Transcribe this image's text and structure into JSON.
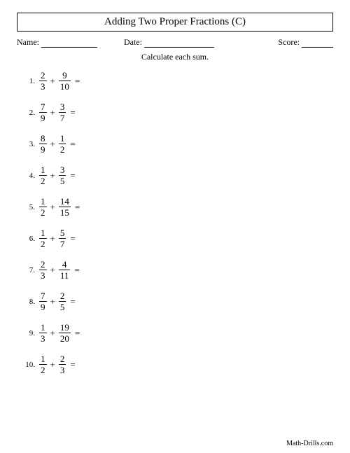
{
  "title": "Adding Two Proper Fractions (C)",
  "meta": {
    "name_label": "Name:",
    "date_label": "Date:",
    "score_label": "Score:"
  },
  "instruction": "Calculate each sum.",
  "problems": [
    {
      "n": "1.",
      "a_num": "2",
      "a_den": "3",
      "b_num": "9",
      "b_den": "10"
    },
    {
      "n": "2.",
      "a_num": "7",
      "a_den": "9",
      "b_num": "3",
      "b_den": "7"
    },
    {
      "n": "3.",
      "a_num": "8",
      "a_den": "9",
      "b_num": "1",
      "b_den": "2"
    },
    {
      "n": "4.",
      "a_num": "1",
      "a_den": "2",
      "b_num": "3",
      "b_den": "5"
    },
    {
      "n": "5.",
      "a_num": "1",
      "a_den": "2",
      "b_num": "14",
      "b_den": "15"
    },
    {
      "n": "6.",
      "a_num": "1",
      "a_den": "2",
      "b_num": "5",
      "b_den": "7"
    },
    {
      "n": "7.",
      "a_num": "2",
      "a_den": "3",
      "b_num": "4",
      "b_den": "11"
    },
    {
      "n": "8.",
      "a_num": "7",
      "a_den": "9",
      "b_num": "2",
      "b_den": "5"
    },
    {
      "n": "9.",
      "a_num": "1",
      "a_den": "3",
      "b_num": "19",
      "b_den": "20"
    },
    {
      "n": "10.",
      "a_num": "1",
      "a_den": "2",
      "b_num": "2",
      "b_den": "3"
    }
  ],
  "symbols": {
    "plus": "+",
    "equals": "="
  },
  "footer": "Math-Drills.com",
  "layout": {
    "name_line_width": 80,
    "date_line_width": 100,
    "score_line_width": 45
  }
}
